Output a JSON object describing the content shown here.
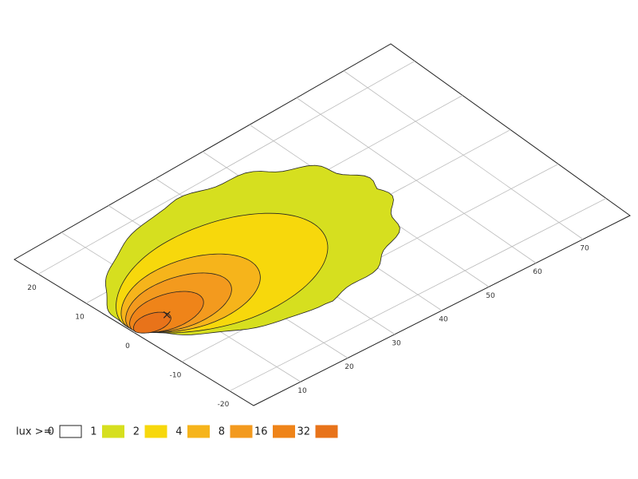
{
  "chart_data": {
    "type": "contour",
    "legend_title": "lux >=",
    "levels": [
      0,
      1,
      2,
      4,
      8,
      16,
      32
    ],
    "colors": [
      "#ffffff",
      "#d6df1f",
      "#f7d80c",
      "#f6b41b",
      "#f39a1e",
      "#ef8419",
      "#e8731a"
    ],
    "xlim": [
      0,
      80
    ],
    "ylim": [
      -25,
      25
    ],
    "xticks": [
      10,
      20,
      30,
      40,
      50,
      60,
      70
    ],
    "yticks": [
      -20,
      -10,
      0,
      10,
      20
    ],
    "grid": true
  }
}
